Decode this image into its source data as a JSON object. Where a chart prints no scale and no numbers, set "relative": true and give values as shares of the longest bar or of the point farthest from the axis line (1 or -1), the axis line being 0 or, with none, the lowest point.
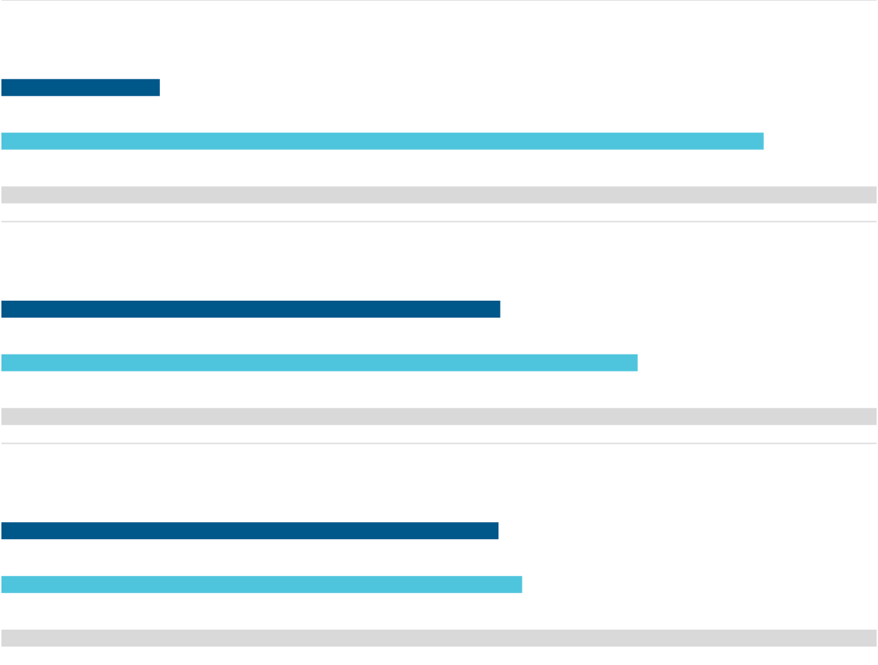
{
  "chart_data": [
    {
      "type": "bar",
      "orientation": "horizontal",
      "relative": true,
      "categories": [
        null,
        null,
        null
      ],
      "values": [
        0.181,
        0.871,
        1
      ],
      "colors": [
        "#00578a",
        "#4fc5dd",
        "#d9d9d9"
      ]
    },
    {
      "type": "bar",
      "orientation": "horizontal",
      "relative": true,
      "categories": [
        null,
        null,
        null
      ],
      "values": [
        0.57,
        0.727,
        1
      ],
      "colors": [
        "#00578a",
        "#4fc5dd",
        "#d9d9d9"
      ]
    },
    {
      "type": "bar",
      "orientation": "horizontal",
      "relative": true,
      "categories": [
        null,
        null,
        null
      ],
      "values": [
        0.568,
        0.595,
        1
      ],
      "colors": [
        "#00578a",
        "#4fc5dd",
        "#d9d9d9"
      ]
    }
  ]
}
